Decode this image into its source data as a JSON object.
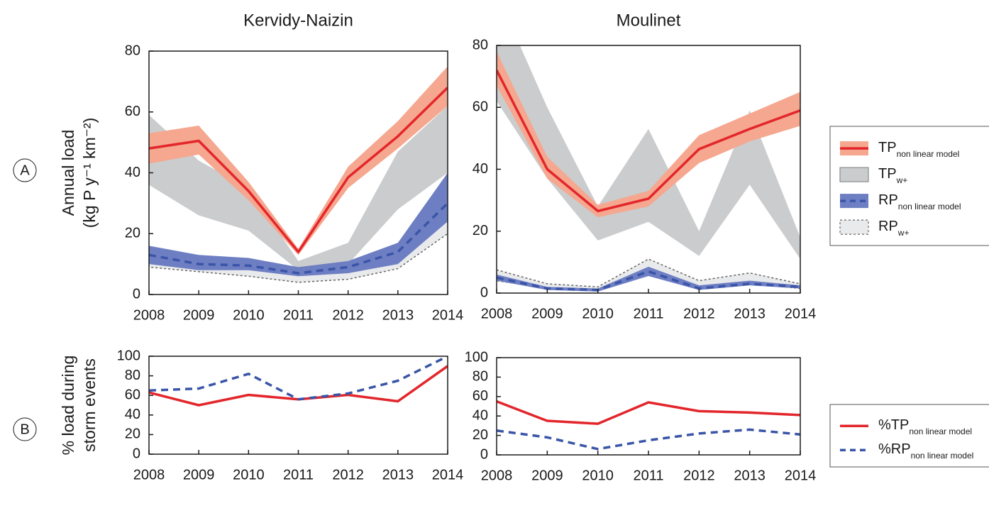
{
  "chart_data": [
    {
      "type": "line",
      "title": "Kervidy-Naizin",
      "panel_label": "A",
      "ylabel": [
        "Annual load",
        "(kg P y⁻¹ km⁻²)"
      ],
      "x": [
        2008,
        2009,
        2010,
        2011,
        2012,
        2013,
        2014
      ],
      "xlim": [
        2008,
        2014
      ],
      "xticks": [
        2008,
        2009,
        2010,
        2011,
        2012,
        2013,
        2014
      ],
      "ylim": [
        0,
        80
      ],
      "yticks": [
        0,
        20,
        40,
        60,
        80
      ],
      "series": [
        {
          "color": "#e3262b",
          "band_color": "#f5a78f",
          "style": "solid",
          "values": [
            48,
            50.5,
            34,
            14,
            38.5,
            52,
            68
          ],
          "low": [
            43,
            46,
            31,
            13,
            35,
            48,
            62
          ],
          "high": [
            53,
            55.5,
            37,
            15,
            42,
            57,
            75
          ]
        },
        {
          "color": "#8a8b8d",
          "band_color": "#cbcccd",
          "style": "band",
          "low": [
            36,
            26,
            21,
            8,
            10,
            28,
            40
          ],
          "high": [
            59,
            44,
            35,
            11,
            17,
            47,
            62
          ]
        },
        {
          "color": "#3a55a8",
          "band_color": "#6e7ec3",
          "style": "dashed",
          "values": [
            13,
            10,
            9.5,
            7,
            9,
            14,
            30
          ],
          "low": [
            10,
            8,
            8,
            6,
            7,
            10,
            24
          ],
          "high": [
            16,
            13,
            12,
            9,
            11,
            17,
            40
          ]
        },
        {
          "color": "#666666",
          "band_color": "#e9eaeb",
          "style": "dotted",
          "low": [
            9,
            7.5,
            6,
            4,
            5,
            8.5,
            20
          ],
          "high": [
            15,
            12.5,
            11,
            8,
            9,
            16,
            36
          ]
        }
      ]
    },
    {
      "type": "line",
      "title": "Moulinet",
      "legend": "right",
      "x": [
        2008,
        2009,
        2010,
        2011,
        2012,
        2013,
        2014
      ],
      "xlim": [
        2008,
        2014
      ],
      "xticks": [
        2008,
        2009,
        2010,
        2011,
        2012,
        2013,
        2014
      ],
      "ylim": [
        0,
        80
      ],
      "yticks": [
        0,
        20,
        40,
        60,
        80
      ],
      "series": [
        {
          "name": "TP",
          "subscript": "non linear model",
          "color": "#e3262b",
          "band_color": "#f5a78f",
          "style": "solid",
          "values": [
            72,
            40,
            26.5,
            30.5,
            46.5,
            53,
            59
          ],
          "low": [
            67,
            37,
            24.5,
            28,
            42,
            49,
            54
          ],
          "high": [
            78,
            44,
            28.5,
            33,
            51,
            58,
            65
          ]
        },
        {
          "name": "TP",
          "subscript": "w+",
          "color": "#8a8b8d",
          "band_color": "#cbcccd",
          "style": "band",
          "low": [
            62,
            37,
            17,
            23,
            12,
            35,
            11
          ],
          "high": [
            97,
            60,
            28,
            53,
            20,
            59,
            18
          ]
        },
        {
          "name": "RP",
          "subscript": "non linear model",
          "color": "#3a55a8",
          "band_color": "#6e7ec3",
          "style": "dashed",
          "values": [
            5,
            1.5,
            1,
            7,
            1.5,
            3,
            2
          ],
          "low": [
            4,
            1,
            0.5,
            5.5,
            1,
            2.5,
            1.5
          ],
          "high": [
            6,
            2,
            1.5,
            8.5,
            2.5,
            4,
            2.5
          ]
        },
        {
          "name": "RP",
          "subscript": "w+",
          "color": "#666666",
          "band_color": "#e9eaeb",
          "style": "dotted",
          "low": [
            4,
            1.5,
            0.8,
            6,
            1.5,
            3,
            1.5
          ],
          "high": [
            7.5,
            3,
            2,
            11,
            4,
            6.5,
            3
          ]
        }
      ]
    },
    {
      "type": "line",
      "panel_label": "B",
      "ylabel": [
        "% load during",
        "storm events"
      ],
      "x": [
        2008,
        2009,
        2010,
        2011,
        2012,
        2013,
        2014
      ],
      "xlim": [
        2008,
        2014
      ],
      "xticks": [
        2008,
        2009,
        2010,
        2011,
        2012,
        2013,
        2014
      ],
      "ylim": [
        0,
        100
      ],
      "yticks": [
        0,
        20,
        40,
        60,
        80,
        100
      ],
      "series": [
        {
          "color": "#e3262b",
          "style": "solid",
          "values": [
            63,
            50,
            60.5,
            56,
            60.5,
            54,
            90
          ]
        },
        {
          "color": "#3a55a8",
          "style": "dashed",
          "values": [
            65,
            67,
            82,
            56,
            62,
            75,
            100
          ]
        }
      ]
    },
    {
      "type": "line",
      "legend": "right",
      "x": [
        2008,
        2009,
        2010,
        2011,
        2012,
        2013,
        2014
      ],
      "xlim": [
        2008,
        2014
      ],
      "xticks": [
        2008,
        2009,
        2010,
        2011,
        2012,
        2013,
        2014
      ],
      "ylim": [
        0,
        100
      ],
      "yticks": [
        0,
        20,
        40,
        60,
        80,
        100
      ],
      "series": [
        {
          "name": "%TP",
          "subscript": "non linear model",
          "color": "#e3262b",
          "style": "solid",
          "values": [
            55,
            35,
            32,
            54,
            45,
            43.5,
            41
          ]
        },
        {
          "name": "%RP",
          "subscript": "non linear model",
          "color": "#3a55a8",
          "style": "dashed",
          "values": [
            25,
            18,
            6,
            15,
            22,
            26,
            21
          ]
        }
      ]
    }
  ]
}
